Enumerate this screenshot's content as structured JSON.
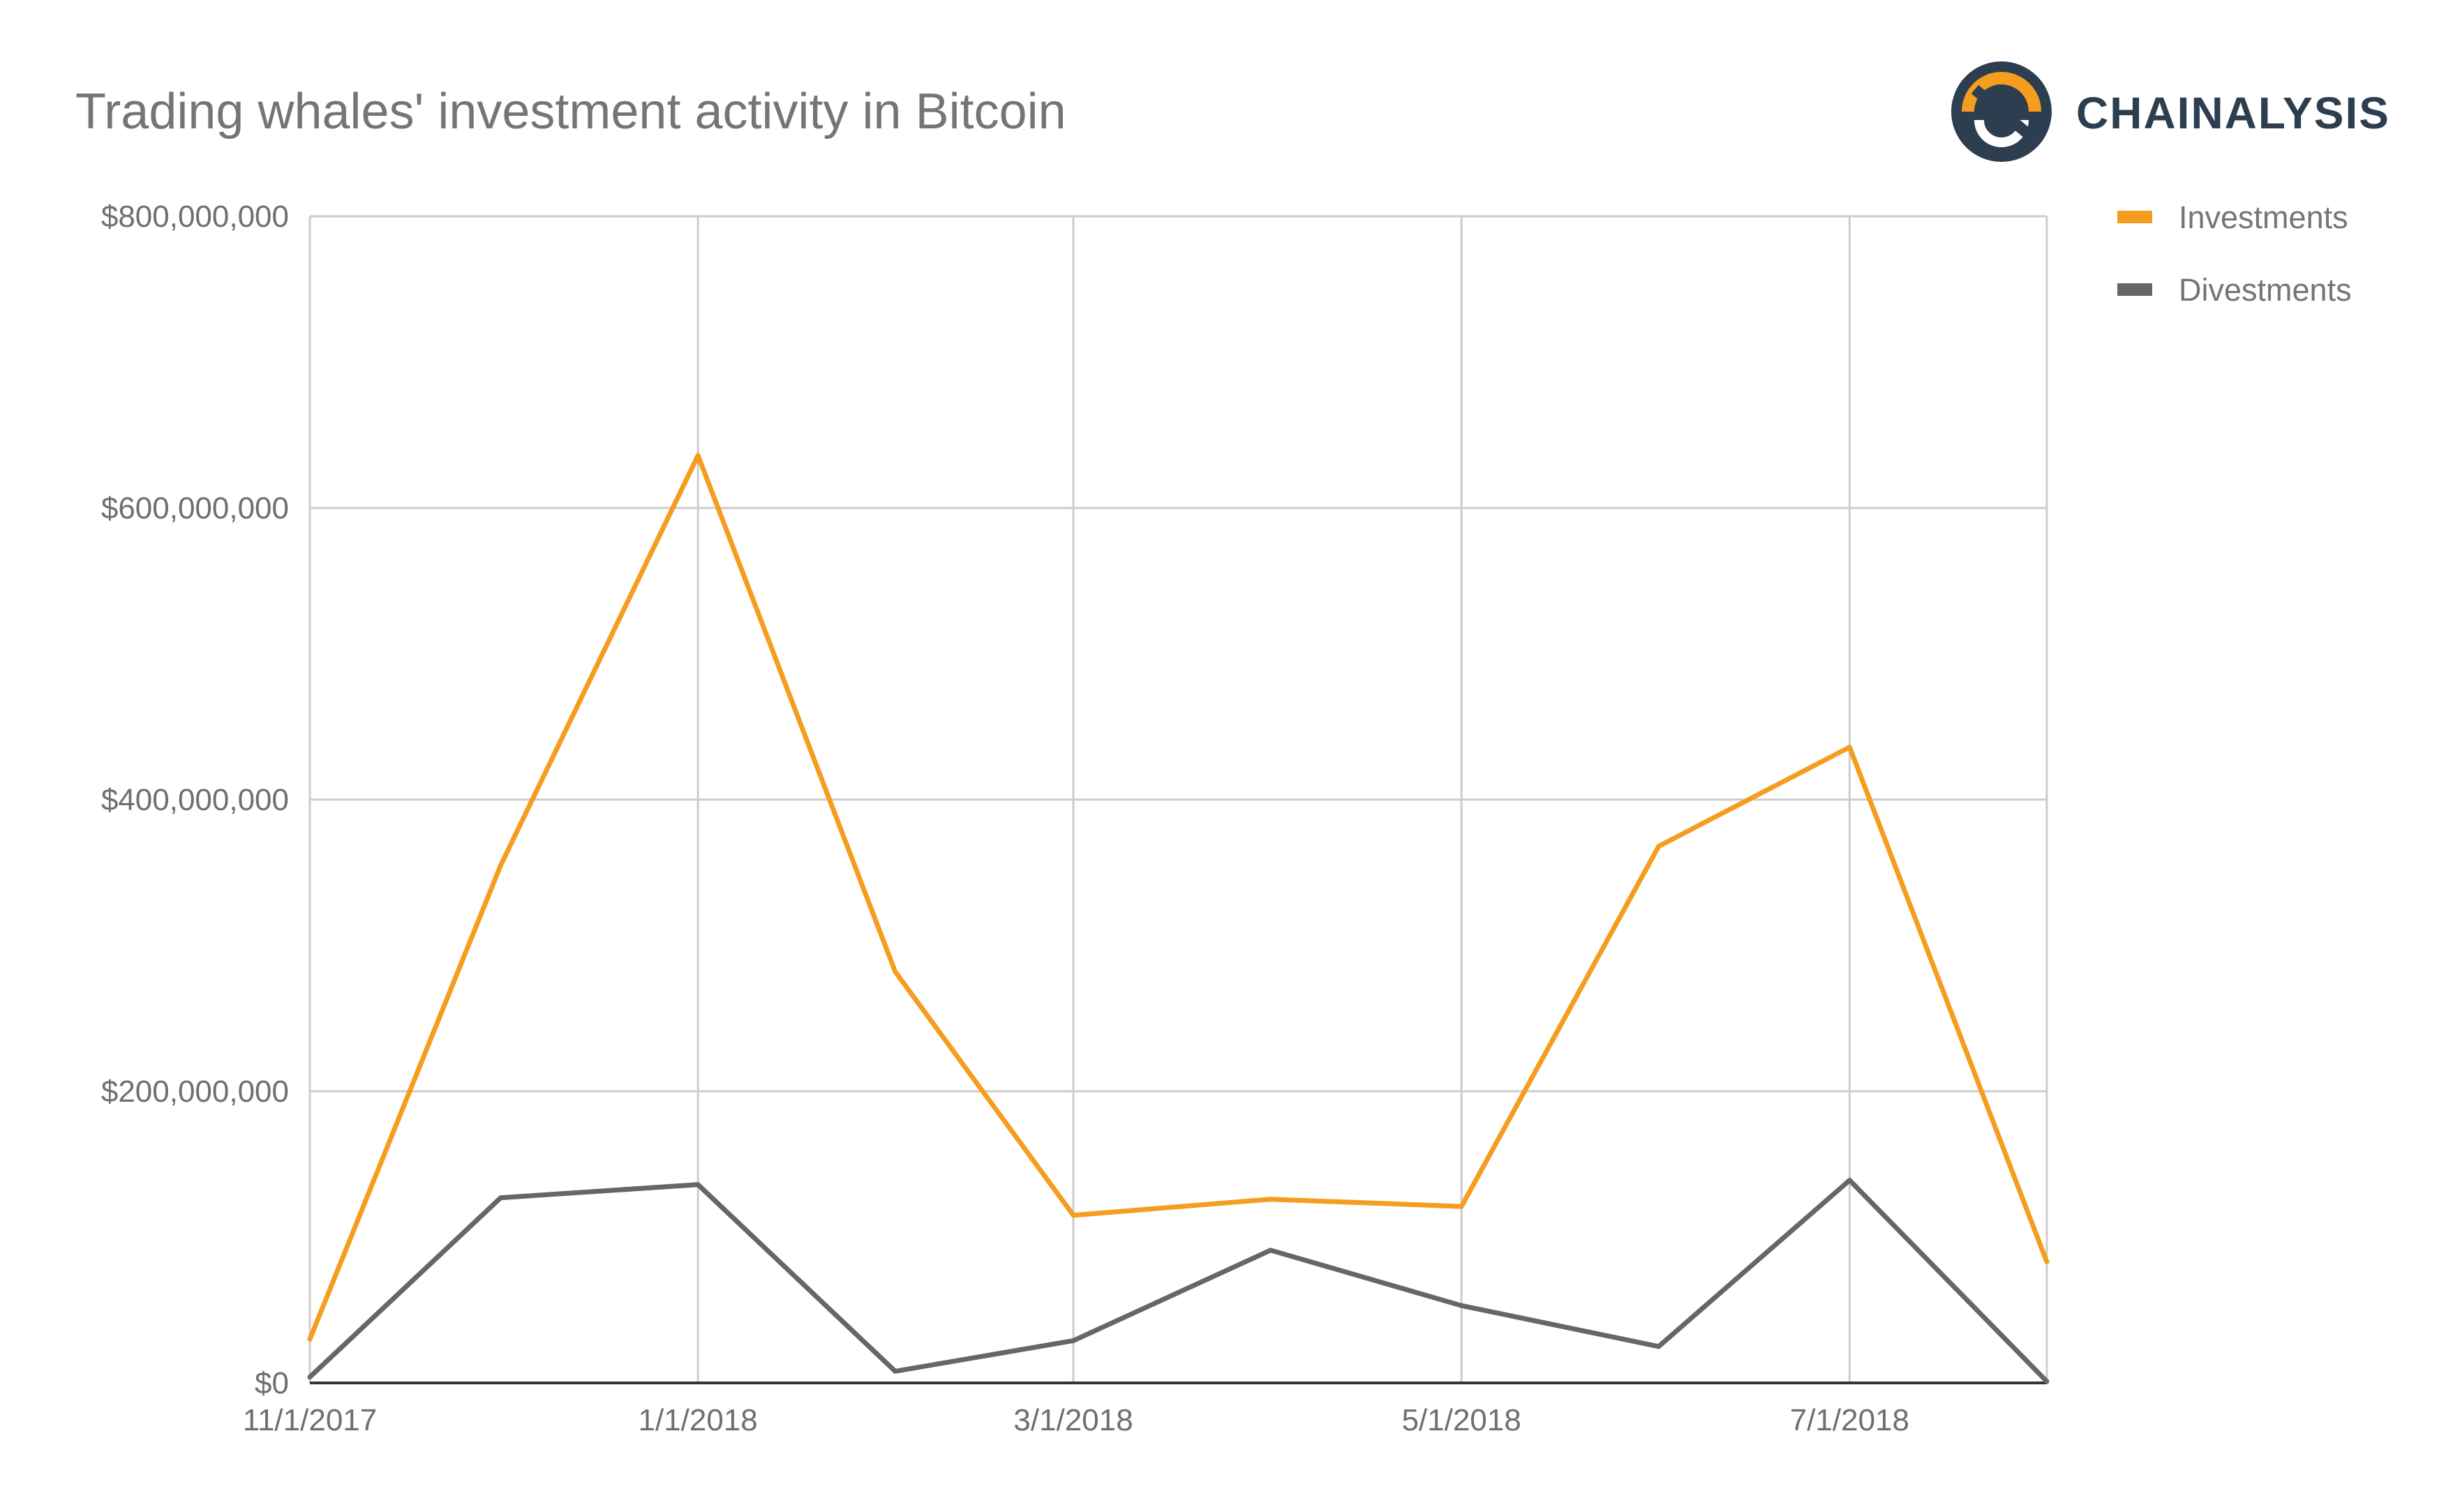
{
  "chart_data": {
    "type": "line",
    "title": "Trading whales' investment activity in Bitcoin",
    "xlabel": "",
    "ylabel": "",
    "x": [
      "2017-11-01",
      "2017-12-01",
      "2018-01-01",
      "2018-02-01",
      "2018-03-01",
      "2018-04-01",
      "2018-05-01",
      "2018-06-01",
      "2018-07-01",
      "2018-08-01"
    ],
    "x_tick_labels": [
      {
        "x": "2017-11-01",
        "label": "11/1/2017"
      },
      {
        "x": "2018-01-01",
        "label": "1/1/2018"
      },
      {
        "x": "2018-03-01",
        "label": "3/1/2018"
      },
      {
        "x": "2018-05-01",
        "label": "5/1/2018"
      },
      {
        "x": "2018-07-01",
        "label": "7/1/2018"
      }
    ],
    "y_ticks": [
      {
        "value": 0,
        "label": "$0"
      },
      {
        "value": 200000000,
        "label": "$200,000,000"
      },
      {
        "value": 400000000,
        "label": "$400,000,000"
      },
      {
        "value": 600000000,
        "label": "$600,000,000"
      },
      {
        "value": 800000000,
        "label": "$800,000,000"
      }
    ],
    "ylim": [
      0,
      800000000
    ],
    "grid": true,
    "legend_position": "top-right",
    "series": [
      {
        "name": "Investments",
        "color": "#f59d1f",
        "values": [
          30000000,
          355000000,
          636000000,
          282000000,
          115000000,
          126000000,
          121000000,
          368000000,
          436000000,
          83000000
        ]
      },
      {
        "name": "Divestments",
        "color": "#666666",
        "values": [
          4000000,
          127000000,
          136000000,
          8000000,
          29000000,
          91000000,
          53000000,
          25000000,
          139000000,
          1000000
        ]
      }
    ]
  },
  "logo": {
    "text": "CHAINALYSIS",
    "dark_color": "#2c3e50",
    "accent_color": "#f59d1f"
  }
}
